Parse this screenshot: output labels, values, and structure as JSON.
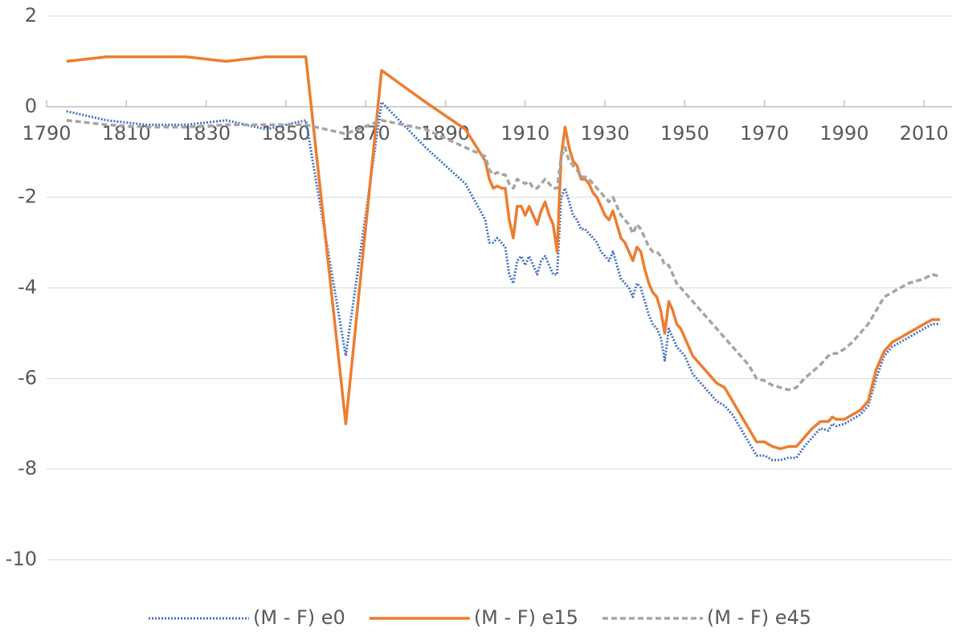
{
  "chart_data": {
    "type": "line",
    "x": [
      1795,
      1805,
      1815,
      1825,
      1835,
      1845,
      1855,
      1865,
      1874,
      1885,
      1895,
      1900,
      1901,
      1902,
      1903,
      1904,
      1905,
      1906,
      1907,
      1908,
      1909,
      1910,
      1911,
      1912,
      1913,
      1914,
      1915,
      1916,
      1917,
      1918,
      1919,
      1920,
      1921,
      1922,
      1923,
      1924,
      1925,
      1926,
      1927,
      1928,
      1929,
      1930,
      1931,
      1932,
      1933,
      1934,
      1935,
      1936,
      1937,
      1938,
      1939,
      1940,
      1941,
      1942,
      1943,
      1944,
      1945,
      1946,
      1947,
      1948,
      1949,
      1950,
      1952,
      1954,
      1956,
      1958,
      1960,
      1962,
      1964,
      1966,
      1968,
      1970,
      1972,
      1974,
      1976,
      1978,
      1980,
      1982,
      1984,
      1986,
      1987,
      1988,
      1990,
      1992,
      1994,
      1996,
      1998,
      2000,
      2002,
      2004,
      2006,
      2008,
      2010,
      2012,
      2014
    ],
    "series": [
      {
        "name": "(M - F) e0",
        "color": "#4472c4",
        "dash": "dotted",
        "values": [
          -0.1,
          -0.3,
          -0.4,
          -0.4,
          -0.3,
          -0.5,
          -0.3,
          -5.5,
          0.1,
          -0.9,
          -1.7,
          -2.5,
          -3.0,
          -3.0,
          -2.9,
          -3.0,
          -3.1,
          -3.7,
          -3.9,
          -3.4,
          -3.3,
          -3.5,
          -3.3,
          -3.5,
          -3.7,
          -3.4,
          -3.3,
          -3.5,
          -3.7,
          -3.7,
          -2.0,
          -1.8,
          -2.1,
          -2.4,
          -2.5,
          -2.7,
          -2.7,
          -2.8,
          -2.9,
          -3.0,
          -3.2,
          -3.3,
          -3.4,
          -3.2,
          -3.5,
          -3.8,
          -3.9,
          -4.0,
          -4.2,
          -3.9,
          -4.0,
          -4.3,
          -4.6,
          -4.8,
          -4.9,
          -5.1,
          -5.6,
          -4.9,
          -5.1,
          -5.3,
          -5.4,
          -5.5,
          -5.9,
          -6.1,
          -6.3,
          -6.5,
          -6.6,
          -6.8,
          -7.1,
          -7.4,
          -7.7,
          -7.7,
          -7.8,
          -7.8,
          -7.75,
          -7.75,
          -7.5,
          -7.3,
          -7.1,
          -7.15,
          -7.0,
          -7.05,
          -7.0,
          -6.9,
          -6.8,
          -6.6,
          -6.0,
          -5.5,
          -5.3,
          -5.2,
          -5.1,
          -5.0,
          -4.9,
          -4.8,
          -4.8
        ]
      },
      {
        "name": "(M - F) e15",
        "color": "#ed7d31",
        "dash": "solid",
        "values": [
          1.0,
          1.1,
          1.1,
          1.1,
          1.0,
          1.1,
          1.1,
          -7.0,
          0.8,
          0.1,
          -0.5,
          -1.2,
          -1.6,
          -1.8,
          -1.75,
          -1.8,
          -1.8,
          -2.5,
          -2.9,
          -2.2,
          -2.2,
          -2.4,
          -2.2,
          -2.4,
          -2.6,
          -2.3,
          -2.1,
          -2.4,
          -2.6,
          -3.2,
          -1.1,
          -0.45,
          -0.9,
          -1.2,
          -1.3,
          -1.6,
          -1.6,
          -1.7,
          -1.9,
          -2.0,
          -2.2,
          -2.4,
          -2.5,
          -2.3,
          -2.6,
          -2.9,
          -3.0,
          -3.2,
          -3.4,
          -3.1,
          -3.2,
          -3.6,
          -3.9,
          -4.1,
          -4.2,
          -4.5,
          -5.0,
          -4.3,
          -4.5,
          -4.8,
          -4.9,
          -5.1,
          -5.5,
          -5.7,
          -5.9,
          -6.1,
          -6.2,
          -6.5,
          -6.8,
          -7.1,
          -7.4,
          -7.4,
          -7.5,
          -7.55,
          -7.5,
          -7.5,
          -7.3,
          -7.1,
          -6.95,
          -6.95,
          -6.85,
          -6.9,
          -6.9,
          -6.8,
          -6.7,
          -6.5,
          -5.8,
          -5.4,
          -5.2,
          -5.1,
          -5.0,
          -4.9,
          -4.8,
          -4.7,
          -4.7
        ]
      },
      {
        "name": "(M - F) e45",
        "color": "#a5a5a5",
        "dash": "dashed",
        "values": [
          -0.3,
          -0.4,
          -0.45,
          -0.45,
          -0.4,
          -0.4,
          -0.4,
          -0.6,
          -0.3,
          -0.5,
          -0.9,
          -1.1,
          -1.4,
          -1.5,
          -1.45,
          -1.5,
          -1.5,
          -1.7,
          -1.8,
          -1.6,
          -1.65,
          -1.7,
          -1.65,
          -1.8,
          -1.8,
          -1.7,
          -1.6,
          -1.7,
          -1.8,
          -1.8,
          -1.1,
          -0.9,
          -1.2,
          -1.3,
          -1.4,
          -1.55,
          -1.55,
          -1.6,
          -1.7,
          -1.8,
          -1.9,
          -2.0,
          -2.1,
          -2.0,
          -2.2,
          -2.4,
          -2.5,
          -2.6,
          -2.8,
          -2.6,
          -2.7,
          -2.9,
          -3.1,
          -3.2,
          -3.2,
          -3.3,
          -3.5,
          -3.5,
          -3.7,
          -3.9,
          -4.0,
          -4.1,
          -4.3,
          -4.5,
          -4.7,
          -4.9,
          -5.1,
          -5.3,
          -5.5,
          -5.7,
          -6.0,
          -6.05,
          -6.15,
          -6.2,
          -6.25,
          -6.2,
          -6.0,
          -5.85,
          -5.7,
          -5.5,
          -5.45,
          -5.45,
          -5.35,
          -5.2,
          -5.0,
          -4.8,
          -4.5,
          -4.2,
          -4.1,
          -4.0,
          -3.9,
          -3.85,
          -3.8,
          -3.7,
          -3.75
        ]
      }
    ],
    "xlim": [
      1790,
      2017
    ],
    "xticks": [
      1790,
      1810,
      1830,
      1850,
      1870,
      1890,
      1910,
      1930,
      1950,
      1970,
      1990,
      2010
    ],
    "ylim": [
      -10,
      2
    ],
    "yticks": [
      -10,
      -8,
      -6,
      -4,
      -2,
      0,
      2
    ],
    "grid": true,
    "legend": "bottom"
  }
}
